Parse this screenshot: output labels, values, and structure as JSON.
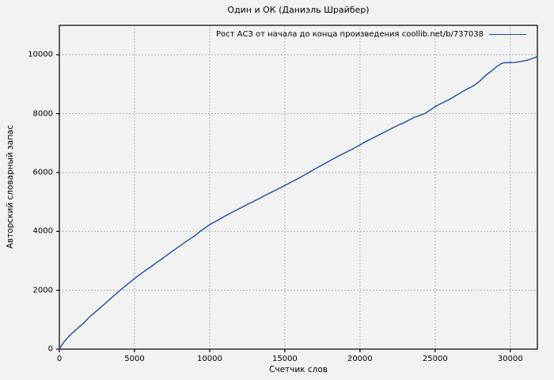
{
  "title": "Один и ОК (Даниэль Шрайбер)",
  "axes": {
    "x_label": "Счетчик слов",
    "y_label": "Авторский словарный запас"
  },
  "colors": {
    "background": "#f2f2f2",
    "line": "#1c4e9e",
    "grid": "#b3b3b3",
    "border": "#000000",
    "text": "#000000"
  },
  "chart_data": {
    "type": "line",
    "title": "Один и ОК (Даниэль Шрайбер)",
    "xlabel": "Счетчик слов",
    "ylabel": "Авторский словарный запас",
    "xlim": [
      0,
      31800
    ],
    "ylim": [
      0,
      11000
    ],
    "x_ticks": [
      0,
      5000,
      10000,
      15000,
      20000,
      25000,
      30000
    ],
    "y_ticks": [
      0,
      2000,
      4000,
      6000,
      8000,
      10000
    ],
    "grid": "dashed",
    "legend_position": "top-right",
    "series": [
      {
        "name": "Рост АСЗ от начала до конца произведения coollib.net/b/737038",
        "color": "#1c4e9e",
        "points": [
          [
            0,
            0
          ],
          [
            100,
            90
          ],
          [
            250,
            200
          ],
          [
            400,
            300
          ],
          [
            600,
            420
          ],
          [
            800,
            520
          ],
          [
            1000,
            610
          ],
          [
            1200,
            700
          ],
          [
            1400,
            790
          ],
          [
            1600,
            880
          ],
          [
            1800,
            985
          ],
          [
            2000,
            1090
          ],
          [
            2500,
            1310
          ],
          [
            3000,
            1530
          ],
          [
            3500,
            1760
          ],
          [
            4050,
            2000
          ],
          [
            4500,
            2190
          ],
          [
            5000,
            2400
          ],
          [
            5500,
            2590
          ],
          [
            6000,
            2770
          ],
          [
            6500,
            2950
          ],
          [
            7000,
            3130
          ],
          [
            7500,
            3320
          ],
          [
            8000,
            3500
          ],
          [
            8500,
            3680
          ],
          [
            9000,
            3850
          ],
          [
            9370,
            4000
          ],
          [
            10000,
            4230
          ],
          [
            10500,
            4370
          ],
          [
            11000,
            4510
          ],
          [
            11500,
            4650
          ],
          [
            12000,
            4780
          ],
          [
            12500,
            4910
          ],
          [
            13000,
            5040
          ],
          [
            13500,
            5170
          ],
          [
            14000,
            5300
          ],
          [
            14500,
            5430
          ],
          [
            15000,
            5560
          ],
          [
            15500,
            5690
          ],
          [
            16000,
            5830
          ],
          [
            16600,
            6000
          ],
          [
            17000,
            6120
          ],
          [
            17500,
            6260
          ],
          [
            18000,
            6400
          ],
          [
            18500,
            6540
          ],
          [
            19000,
            6670
          ],
          [
            19500,
            6800
          ],
          [
            20000,
            6940
          ],
          [
            20500,
            7080
          ],
          [
            21000,
            7210
          ],
          [
            21500,
            7340
          ],
          [
            22000,
            7470
          ],
          [
            22500,
            7600
          ],
          [
            23000,
            7710
          ],
          [
            23600,
            7870
          ],
          [
            24300,
            8000
          ],
          [
            24700,
            8130
          ],
          [
            25000,
            8240
          ],
          [
            25500,
            8370
          ],
          [
            26000,
            8500
          ],
          [
            26500,
            8650
          ],
          [
            27000,
            8800
          ],
          [
            27600,
            8960
          ],
          [
            28000,
            9120
          ],
          [
            28400,
            9320
          ],
          [
            28800,
            9470
          ],
          [
            29100,
            9600
          ],
          [
            29400,
            9700
          ],
          [
            29600,
            9730
          ],
          [
            30000,
            9735
          ],
          [
            30300,
            9740
          ],
          [
            30700,
            9770
          ],
          [
            31100,
            9810
          ],
          [
            31500,
            9880
          ],
          [
            31800,
            9940
          ]
        ]
      }
    ]
  }
}
